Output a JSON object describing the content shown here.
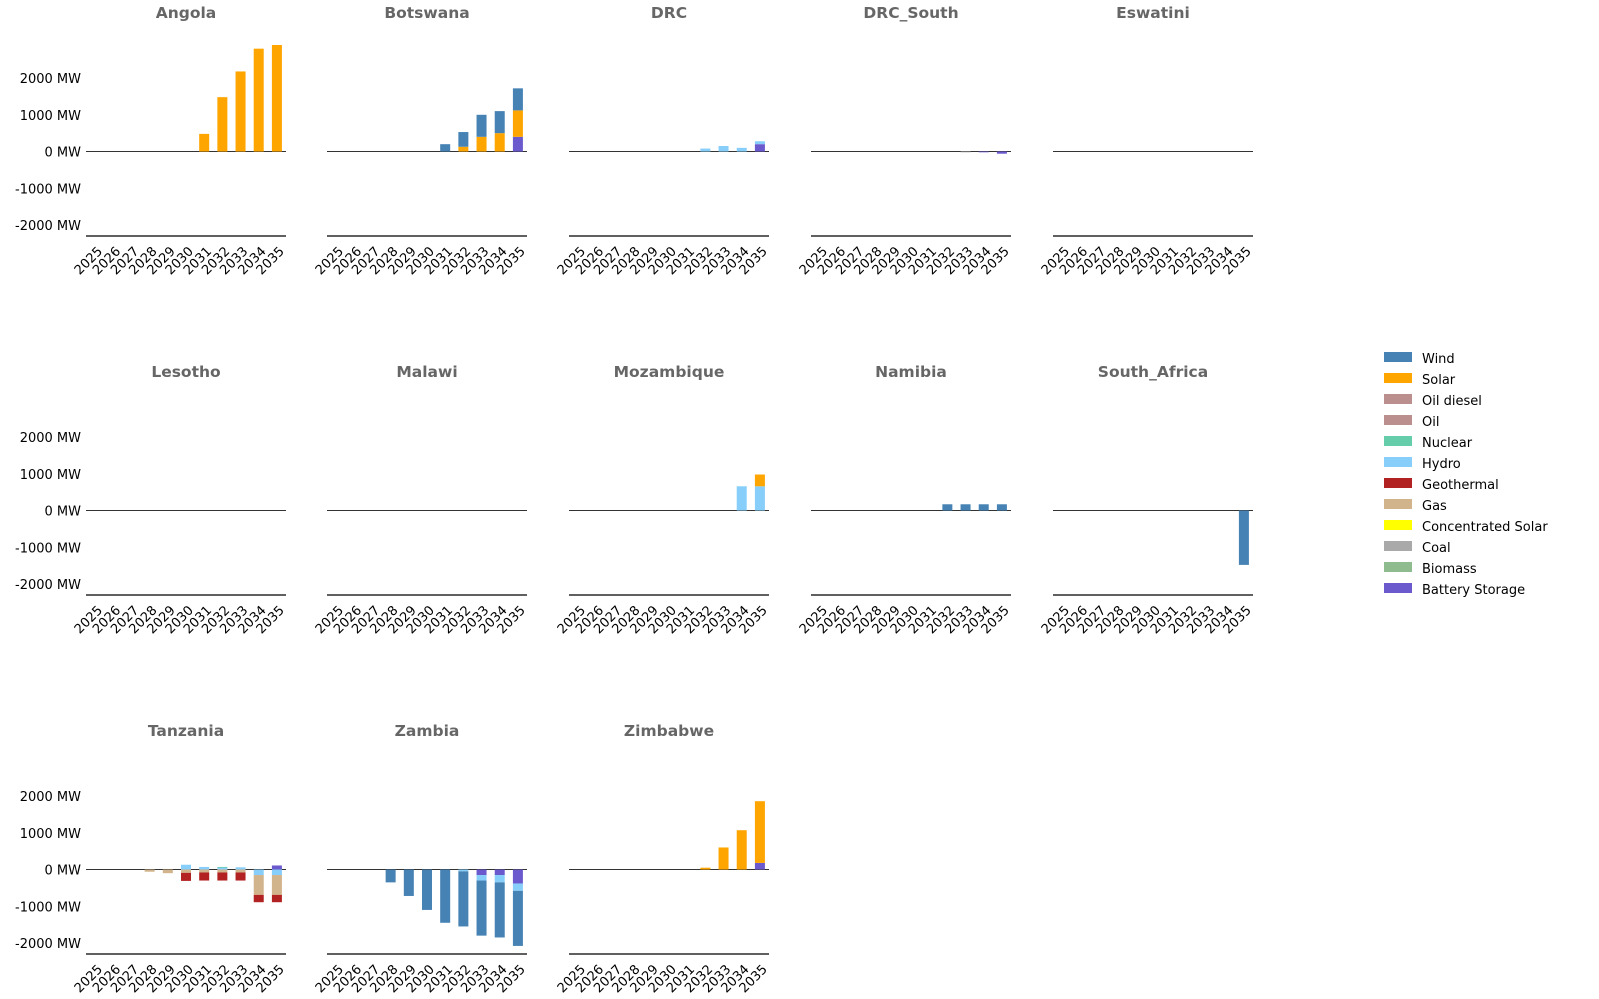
{
  "legend": {
    "placement": "right",
    "items": [
      {
        "name": "Wind",
        "color": "#4682b4"
      },
      {
        "name": "Solar",
        "color": "#ffa500"
      },
      {
        "name": "Oil diesel",
        "color": "#bc8f8f"
      },
      {
        "name": "Oil",
        "color": "#bc8f8f"
      },
      {
        "name": "Nuclear",
        "color": "#66cdaa"
      },
      {
        "name": "Hydro",
        "color": "#87cefa"
      },
      {
        "name": "Geothermal",
        "color": "#b22222"
      },
      {
        "name": "Gas",
        "color": "#d2b48c"
      },
      {
        "name": "Concentrated Solar",
        "color": "#ffff00"
      },
      {
        "name": "Coal",
        "color": "#a9a9a9"
      },
      {
        "name": "Biomass",
        "color": "#8fbc8f"
      },
      {
        "name": "Battery Storage",
        "color": "#6a5acd"
      }
    ]
  },
  "axis": {
    "ylim": [
      -2300,
      2900
    ],
    "yticks": [
      2000,
      1000,
      0,
      -1000,
      -2000
    ],
    "ytick_labels": [
      "2000 MW",
      "1000 MW",
      "0 MW",
      "-1000 MW",
      "-2000 MW"
    ],
    "xticks": [
      "2025",
      "2026",
      "2027",
      "2028",
      "2029",
      "2030",
      "2031",
      "2032",
      "2033",
      "2034",
      "2035"
    ]
  },
  "chart_data": [
    {
      "type": "bar",
      "title": "Angola",
      "stacked": true,
      "categories": [
        "2025",
        "2026",
        "2027",
        "2028",
        "2029",
        "2030",
        "2031",
        "2032",
        "2033",
        "2034",
        "2035"
      ],
      "series": [
        {
          "name": "Solar",
          "values": [
            0,
            0,
            0,
            0,
            0,
            0,
            480,
            1480,
            2180,
            2800,
            2900
          ]
        }
      ]
    },
    {
      "type": "bar",
      "title": "Botswana",
      "stacked": true,
      "categories": [
        "2025",
        "2026",
        "2027",
        "2028",
        "2029",
        "2030",
        "2031",
        "2032",
        "2033",
        "2034",
        "2035"
      ],
      "series": [
        {
          "name": "Battery Storage",
          "values": [
            0,
            0,
            0,
            0,
            0,
            0,
            0,
            0,
            0,
            0,
            400
          ]
        },
        {
          "name": "Solar",
          "values": [
            0,
            0,
            0,
            0,
            0,
            0,
            0,
            130,
            400,
            500,
            720
          ]
        },
        {
          "name": "Wind",
          "values": [
            0,
            0,
            0,
            0,
            0,
            0,
            200,
            400,
            600,
            600,
            600
          ]
        }
      ]
    },
    {
      "type": "bar",
      "title": "DRC",
      "stacked": true,
      "categories": [
        "2025",
        "2026",
        "2027",
        "2028",
        "2029",
        "2030",
        "2031",
        "2032",
        "2033",
        "2034",
        "2035"
      ],
      "series": [
        {
          "name": "Battery Storage",
          "values": [
            0,
            0,
            0,
            0,
            0,
            0,
            0,
            0,
            0,
            0,
            200
          ]
        },
        {
          "name": "Hydro",
          "values": [
            0,
            0,
            0,
            0,
            0,
            0,
            0,
            80,
            150,
            100,
            80
          ]
        }
      ]
    },
    {
      "type": "bar",
      "title": "DRC_South",
      "stacked": true,
      "categories": [
        "2025",
        "2026",
        "2027",
        "2028",
        "2029",
        "2030",
        "2031",
        "2032",
        "2033",
        "2034",
        "2035"
      ],
      "series": [
        {
          "name": "Battery Storage",
          "values": [
            0,
            0,
            0,
            0,
            0,
            0,
            0,
            0,
            0,
            -15,
            -60
          ]
        },
        {
          "name": "Coal",
          "values": [
            0,
            0,
            0,
            0,
            0,
            0,
            0,
            0,
            -10,
            0,
            0
          ]
        }
      ]
    },
    {
      "type": "bar",
      "title": "Eswatini",
      "stacked": true,
      "categories": [
        "2025",
        "2026",
        "2027",
        "2028",
        "2029",
        "2030",
        "2031",
        "2032",
        "2033",
        "2034",
        "2035"
      ],
      "series": []
    },
    {
      "type": "bar",
      "title": "Lesotho",
      "stacked": true,
      "categories": [
        "2025",
        "2026",
        "2027",
        "2028",
        "2029",
        "2030",
        "2031",
        "2032",
        "2033",
        "2034",
        "2035"
      ],
      "series": []
    },
    {
      "type": "bar",
      "title": "Malawi",
      "stacked": true,
      "categories": [
        "2025",
        "2026",
        "2027",
        "2028",
        "2029",
        "2030",
        "2031",
        "2032",
        "2033",
        "2034",
        "2035"
      ],
      "series": []
    },
    {
      "type": "bar",
      "title": "Mozambique",
      "stacked": true,
      "categories": [
        "2025",
        "2026",
        "2027",
        "2028",
        "2029",
        "2030",
        "2031",
        "2032",
        "2033",
        "2034",
        "2035"
      ],
      "series": [
        {
          "name": "Hydro",
          "values": [
            0,
            0,
            0,
            0,
            0,
            0,
            0,
            0,
            0,
            660,
            660
          ]
        },
        {
          "name": "Solar",
          "values": [
            0,
            0,
            0,
            0,
            0,
            0,
            0,
            0,
            0,
            0,
            320
          ]
        }
      ]
    },
    {
      "type": "bar",
      "title": "Namibia",
      "stacked": true,
      "categories": [
        "2025",
        "2026",
        "2027",
        "2028",
        "2029",
        "2030",
        "2031",
        "2032",
        "2033",
        "2034",
        "2035"
      ],
      "series": [
        {
          "name": "Wind",
          "values": [
            0,
            0,
            0,
            0,
            0,
            0,
            0,
            170,
            170,
            170,
            170
          ]
        }
      ]
    },
    {
      "type": "bar",
      "title": "South_Africa",
      "stacked": true,
      "categories": [
        "2025",
        "2026",
        "2027",
        "2028",
        "2029",
        "2030",
        "2031",
        "2032",
        "2033",
        "2034",
        "2035"
      ],
      "series": [
        {
          "name": "Wind",
          "values": [
            0,
            0,
            0,
            0,
            0,
            0,
            0,
            0,
            0,
            0,
            -1480
          ]
        }
      ]
    },
    {
      "type": "bar",
      "title": "Tanzania",
      "stacked": true,
      "categories": [
        "2025",
        "2026",
        "2027",
        "2028",
        "2029",
        "2030",
        "2031",
        "2032",
        "2033",
        "2034",
        "2035"
      ],
      "series": [
        {
          "name": "Hydro",
          "values": [
            0,
            0,
            0,
            0,
            0,
            130,
            70,
            60,
            60,
            -150,
            -150
          ]
        },
        {
          "name": "Nuclear",
          "values": [
            0,
            0,
            0,
            0,
            0,
            0,
            0,
            10,
            0,
            0,
            0
          ]
        },
        {
          "name": "Battery Storage",
          "values": [
            0,
            0,
            0,
            0,
            0,
            0,
            0,
            0,
            0,
            0,
            110
          ]
        },
        {
          "name": "Gas",
          "values": [
            0,
            0,
            0,
            -60,
            -100,
            -90,
            -80,
            -80,
            -80,
            -540,
            -540
          ]
        },
        {
          "name": "Geothermal",
          "values": [
            0,
            0,
            0,
            0,
            0,
            -220,
            -220,
            -220,
            -220,
            -200,
            -200
          ]
        }
      ]
    },
    {
      "type": "bar",
      "title": "Zambia",
      "stacked": true,
      "categories": [
        "2025",
        "2026",
        "2027",
        "2028",
        "2029",
        "2030",
        "2031",
        "2032",
        "2033",
        "2034",
        "2035"
      ],
      "series": [
        {
          "name": "Battery Storage",
          "values": [
            0,
            0,
            0,
            0,
            0,
            0,
            0,
            0,
            -150,
            -150,
            -380
          ]
        },
        {
          "name": "Hydro",
          "values": [
            0,
            0,
            0,
            0,
            0,
            0,
            0,
            -50,
            -150,
            -200,
            -200
          ]
        },
        {
          "name": "Wind",
          "values": [
            0,
            0,
            0,
            -350,
            -720,
            -1100,
            -1450,
            -1500,
            -1500,
            -1500,
            -1500
          ]
        }
      ]
    },
    {
      "type": "bar",
      "title": "Zimbabwe",
      "stacked": true,
      "categories": [
        "2025",
        "2026",
        "2027",
        "2028",
        "2029",
        "2030",
        "2031",
        "2032",
        "2033",
        "2034",
        "2035"
      ],
      "series": [
        {
          "name": "Battery Storage",
          "values": [
            0,
            0,
            0,
            0,
            0,
            0,
            0,
            0,
            0,
            0,
            180
          ]
        },
        {
          "name": "Solar",
          "values": [
            0,
            0,
            0,
            0,
            0,
            0,
            0,
            50,
            600,
            1070,
            1680
          ]
        }
      ]
    }
  ]
}
